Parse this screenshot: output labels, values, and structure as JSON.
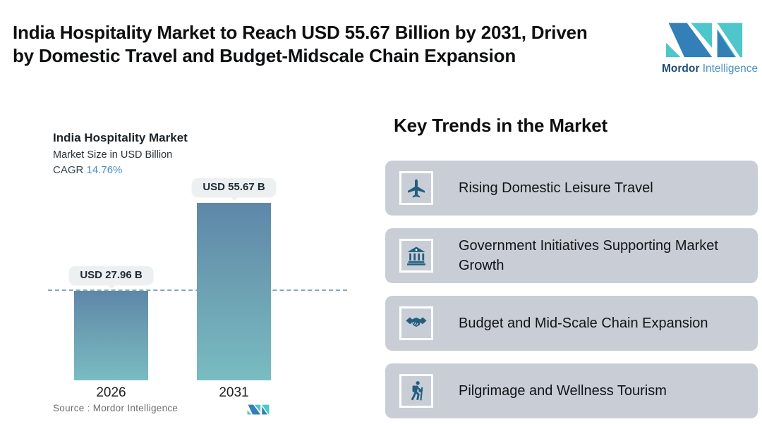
{
  "header": {
    "title_lines": [
      "India Hospitality Market to Reach USD 55.67 Billion by 2031, Driven",
      "by Domestic Travel and Budget-Midscale Chain Expansion"
    ],
    "brand": {
      "name_bold": "Mordor",
      "name_light": "Intelligence"
    }
  },
  "chart": {
    "title": "India Hospitality Market",
    "subtitle": "Market Size in USD Billion",
    "cagr_label": "CAGR",
    "cagr_value": "14.76%",
    "source": "Source :  Mordor Intelligence"
  },
  "chart_data": {
    "type": "bar",
    "title": "India Hospitality Market",
    "ylabel": "Market Size in USD Billion",
    "categories": [
      "2026",
      "2031"
    ],
    "values": [
      27.96,
      55.67
    ],
    "data_labels": [
      "USD 27.96 B",
      "USD 55.67 B"
    ],
    "cagr_percent": 14.76,
    "ylim": [
      0,
      55.67
    ],
    "reference_line_value": 27.96,
    "grid": false,
    "legend": "none",
    "bar_gradient": [
      "#5e87a9",
      "#79bcc1"
    ],
    "source": "Mordor Intelligence"
  },
  "trends": {
    "heading": "Key Trends in the Market",
    "items": [
      {
        "icon": "airplane-icon",
        "label": "Rising Domestic Leisure Travel"
      },
      {
        "icon": "bank-icon",
        "label": "Government Initiatives Supporting Market Growth"
      },
      {
        "icon": "handshake-icon",
        "label": "Budget and Mid-Scale Chain Expansion"
      },
      {
        "icon": "hiker-icon",
        "label": "Pilgrimage and Wellness Tourism"
      }
    ]
  },
  "colors": {
    "logo_blue": "#3380b8",
    "logo_teal": "#4fc6cb",
    "icon_blue": "#245e7f",
    "cagr_blue": "#4c8fbc",
    "card_bg": "#c9ced6",
    "bar_top": "#5e87a9",
    "bar_bottom": "#79bcc1",
    "dashed_line": "#84a8c4"
  }
}
